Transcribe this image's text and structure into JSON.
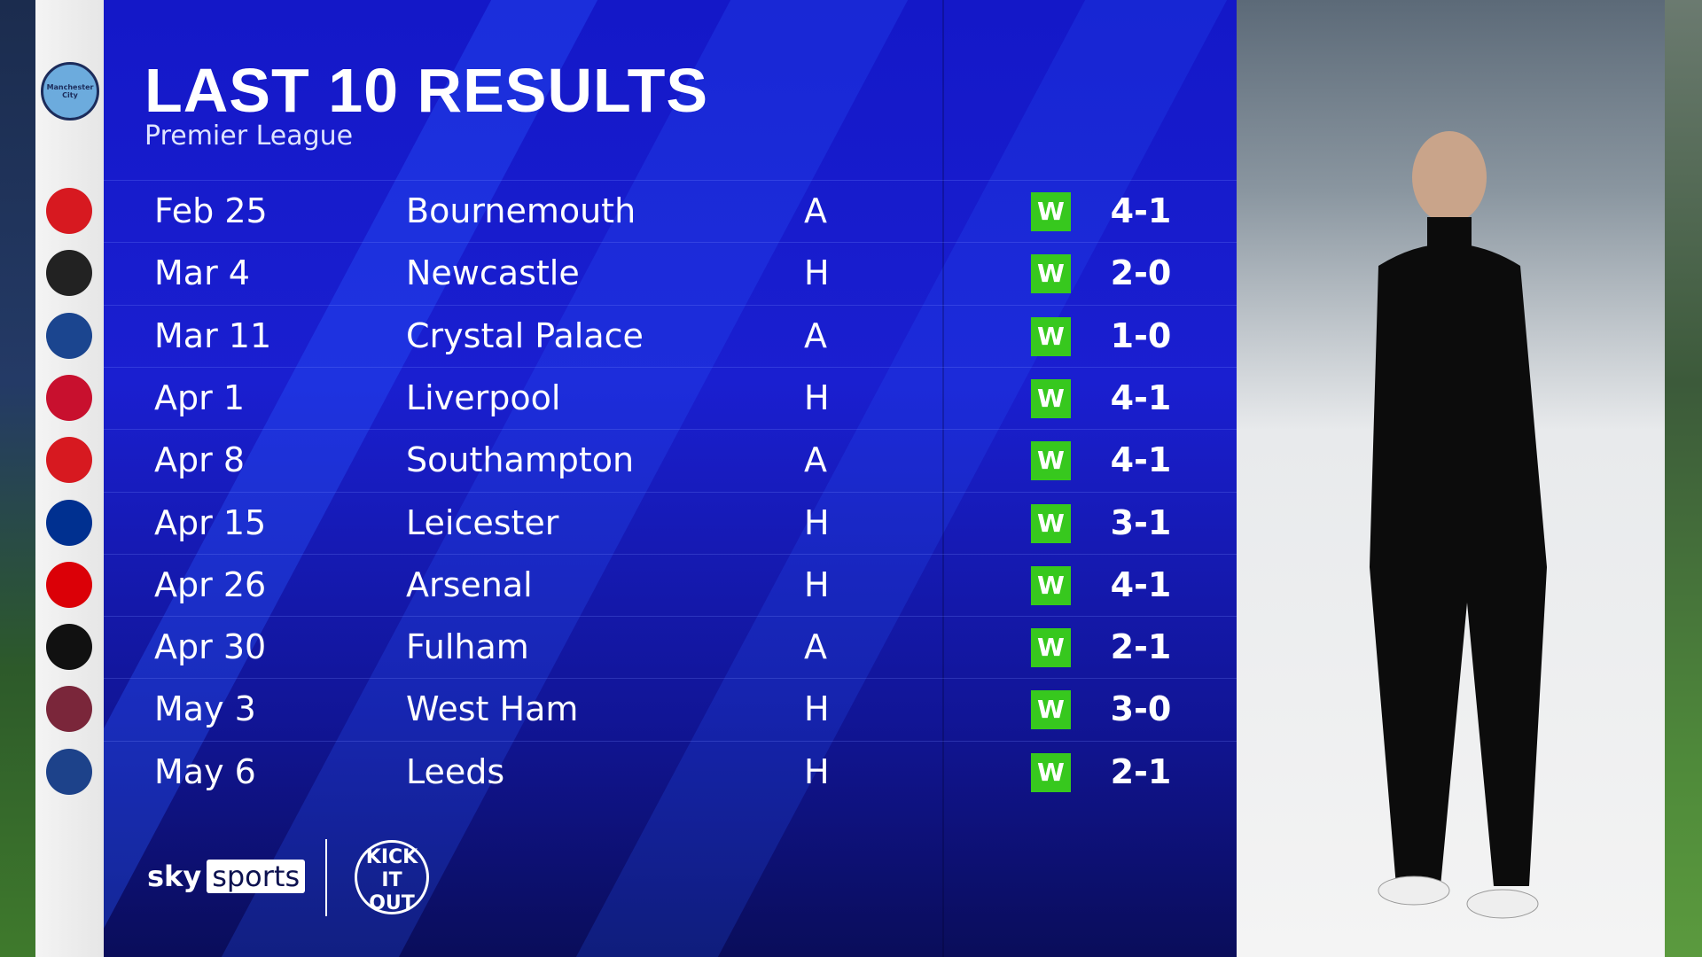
{
  "header": {
    "title": "LAST 10 RESULTS",
    "subtitle": "Premier League",
    "team": "Manchester City"
  },
  "colors": {
    "panel": "#1418c8",
    "win_badge": "#37c81e"
  },
  "results": [
    {
      "date": "Feb 25",
      "opponent": "Bournemouth",
      "venue": "A",
      "result": "W",
      "score": "4-1",
      "crest_color": "#d71920"
    },
    {
      "date": "Mar 4",
      "opponent": "Newcastle",
      "venue": "H",
      "result": "W",
      "score": "2-0",
      "crest_color": "#222222"
    },
    {
      "date": "Mar 11",
      "opponent": "Crystal Palace",
      "venue": "A",
      "result": "W",
      "score": "1-0",
      "crest_color": "#1b458f"
    },
    {
      "date": "Apr 1",
      "opponent": "Liverpool",
      "venue": "H",
      "result": "W",
      "score": "4-1",
      "crest_color": "#c8102e"
    },
    {
      "date": "Apr 8",
      "opponent": "Southampton",
      "venue": "A",
      "result": "W",
      "score": "4-1",
      "crest_color": "#d71920"
    },
    {
      "date": "Apr 15",
      "opponent": "Leicester",
      "venue": "H",
      "result": "W",
      "score": "3-1",
      "crest_color": "#003090"
    },
    {
      "date": "Apr 26",
      "opponent": "Arsenal",
      "venue": "H",
      "result": "W",
      "score": "4-1",
      "crest_color": "#db0007"
    },
    {
      "date": "Apr 30",
      "opponent": "Fulham",
      "venue": "A",
      "result": "W",
      "score": "2-1",
      "crest_color": "#111111"
    },
    {
      "date": "May 3",
      "opponent": "West Ham",
      "venue": "H",
      "result": "W",
      "score": "3-0",
      "crest_color": "#7a263a"
    },
    {
      "date": "May 6",
      "opponent": "Leeds",
      "venue": "H",
      "result": "W",
      "score": "2-1",
      "crest_color": "#1d428a"
    }
  ],
  "footer": {
    "brand_a": "sky",
    "brand_b": "sports",
    "campaign": "KICK IT OUT"
  }
}
